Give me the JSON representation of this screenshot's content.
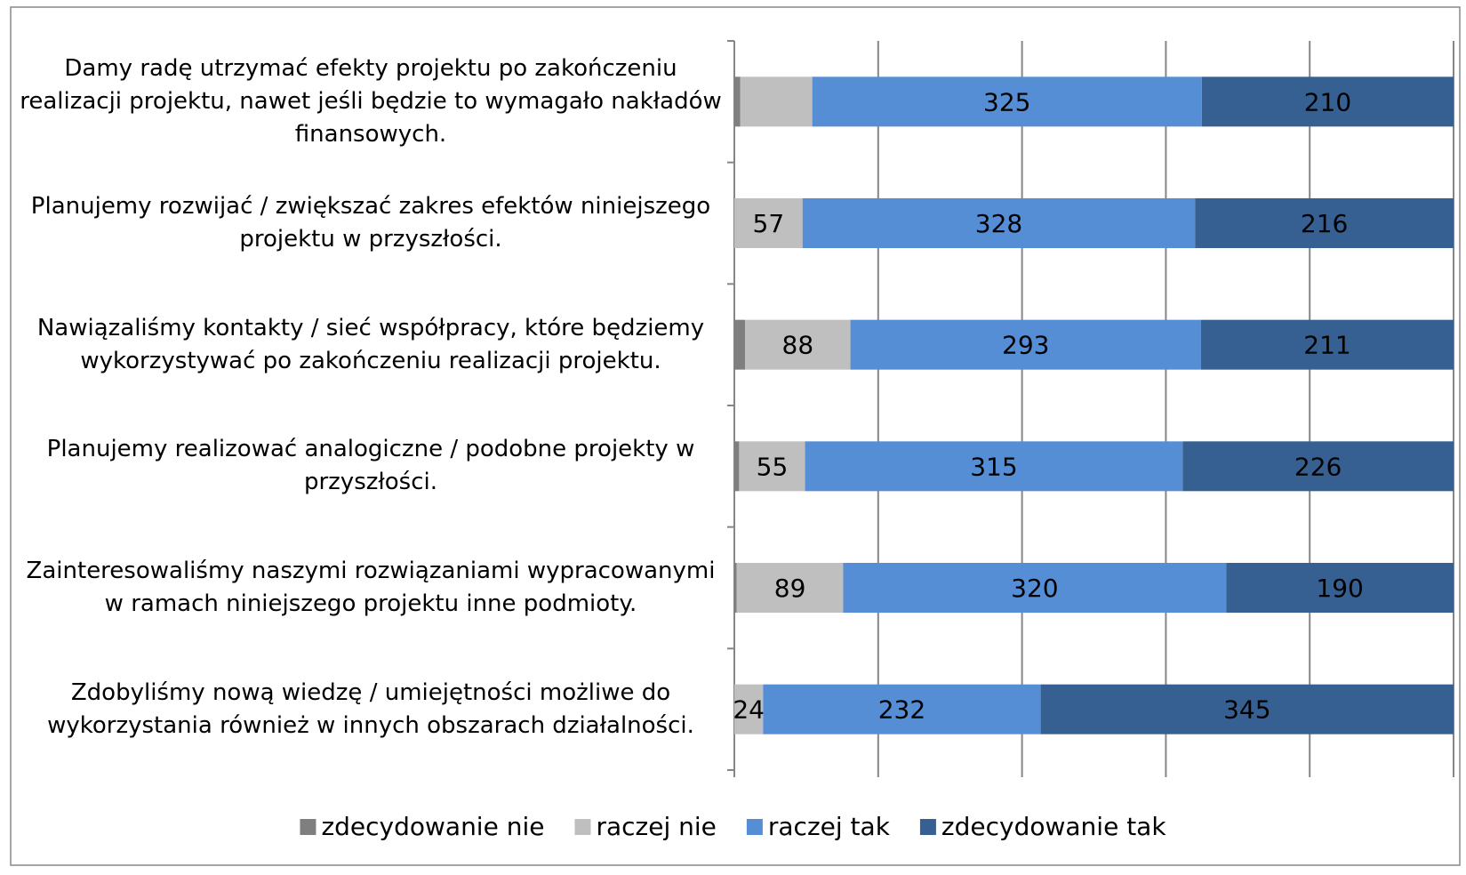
{
  "chart_data": {
    "type": "percent_stacked_barh",
    "categories": [
      "Damy radę utrzymać efekty projektu po zakończeniu realizacji projektu, nawet jeśli będzie to wymagało nakładów finansowych.",
      "Planujemy rozwijać / zwiększać zakres efektów niniejszego projektu w przyszłości.",
      "Nawiązaliśmy kontakty / sieć współpracy, które będziemy wykorzystywać po zakończeniu realizacji projektu.",
      "Planujemy realizować analogiczne / podobne projekty w przyszłości.",
      "Zainteresowaliśmy naszymi rozwiązaniami wypracowanymi w ramach niniejszego projektu inne podmioty.",
      "Zdobyliśmy nową wiedzę / umiejętności możliwe do wykorzystania również w innych obszarach działalności."
    ],
    "series": [
      {
        "name": "zdecydowanie nie",
        "color": "#7f7f7f",
        "values": [
          5,
          0,
          9,
          4,
          2,
          0
        ],
        "value_labels": [
          null,
          null,
          null,
          null,
          null,
          null
        ]
      },
      {
        "name": "raczej nie",
        "color": "#bfbfbf",
        "values": [
          60,
          57,
          88,
          55,
          89,
          24
        ],
        "value_labels": [
          null,
          "57",
          "88",
          "55",
          "89",
          "24"
        ]
      },
      {
        "name": "raczej tak",
        "color": "#558ed5",
        "values": [
          325,
          328,
          293,
          315,
          320,
          232
        ],
        "value_labels": [
          "325",
          "328",
          "293",
          "315",
          "320",
          "232"
        ]
      },
      {
        "name": "zdecydowanie tak",
        "color": "#376092",
        "values": [
          210,
          216,
          211,
          226,
          190,
          345
        ],
        "value_labels": [
          "210",
          "216",
          "211",
          "226",
          "190",
          "345"
        ]
      }
    ],
    "xlim": [
      0,
      100
    ],
    "xticks": [
      0,
      20,
      40,
      60,
      80,
      100
    ],
    "grid": true,
    "legend": "bottom"
  }
}
